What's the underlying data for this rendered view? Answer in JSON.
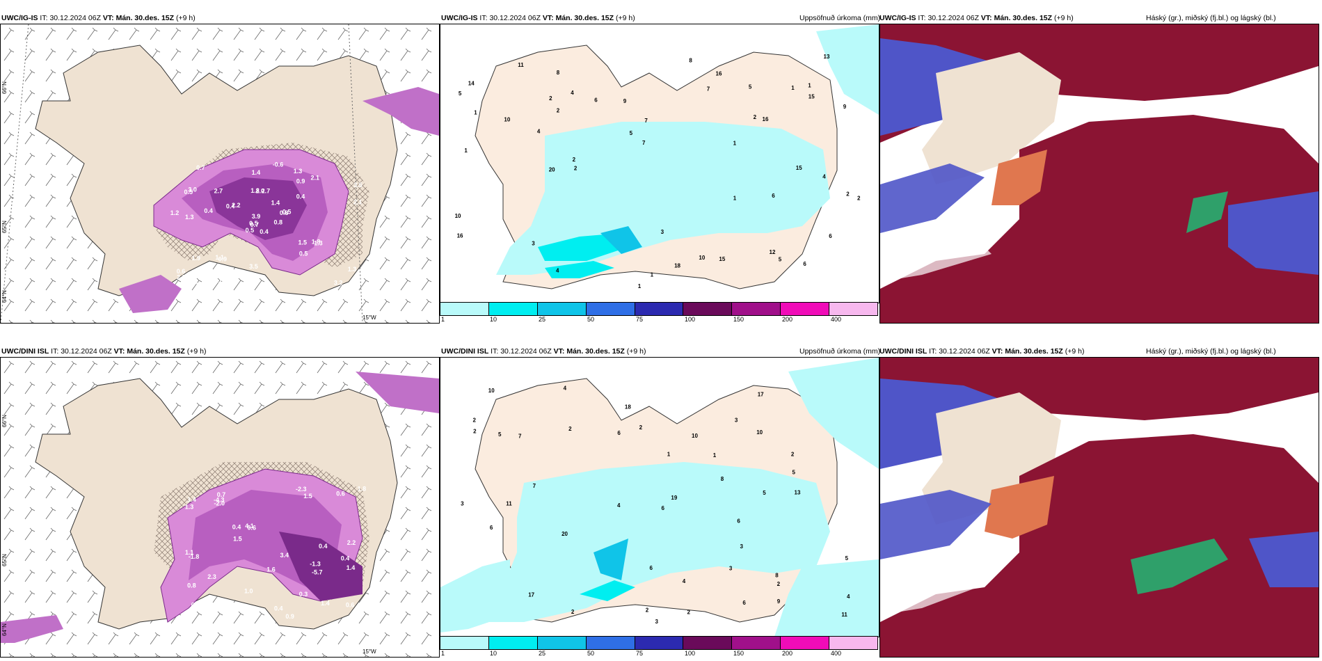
{
  "rows": [
    {
      "model": "UWC/IG-IS",
      "it_label": "IT:",
      "it_value": "30.12.2024 06Z",
      "vt_label": "VT:",
      "vt_value": "Mán. 30.des. 15Z",
      "lead": "(+9 h)"
    },
    {
      "model": "UWC/DINI ISL",
      "it_label": "IT:",
      "it_value": "30.12.2024 06Z",
      "vt_label": "VT:",
      "vt_value": "Mán. 30.des. 15Z",
      "lead": "(+9 h)"
    }
  ],
  "precip_title": "Uppsöfnuð úrkoma (mm)",
  "cloud_title": "Háský (gr.), miðský (fj.bl.) og lágský (bl.)",
  "colorbar": {
    "ticks": [
      "1",
      "10",
      "25",
      "50",
      "75",
      "100",
      "150",
      "200",
      "400"
    ],
    "colors": [
      "#b9fafa",
      "#00eef0",
      "#10c4e8",
      "#2f6fe6",
      "#2c2ab0",
      "#6a0a5a",
      "#a0108a",
      "#f00cb8",
      "#f7b8ee"
    ]
  },
  "temp_panel_top": {
    "lat_labels": [
      "66°N",
      "65°N",
      "64°N"
    ],
    "lon_label": "15°W",
    "values": [
      "0.4",
      "0.5",
      "0.7",
      "0.6",
      "0.8",
      "0.9",
      "1.3",
      "2.7",
      "0.9",
      "0.8",
      "0.7",
      "1.1",
      "1.3",
      "3.5",
      "0.5",
      "0.4",
      "1.0",
      "1.8",
      "1.4",
      "1.9",
      "2.2",
      "2.8",
      "1.4",
      "2.0",
      "0.5",
      "1.3",
      "3.0",
      "1.4",
      "1.2",
      "1.5",
      "2.1",
      "0.5",
      "3.5",
      "3.9",
      "2.7",
      "2.1",
      "1.1",
      "3.2",
      "1.3",
      "1.8",
      "-0.6",
      "0.4",
      "0.4",
      "0.5",
      "0.5"
    ]
  },
  "temp_panel_bottom": {
    "lat_labels": [
      "66°N",
      "65°N",
      "64°N"
    ],
    "lon_label": "15°W",
    "values": [
      "-1.3",
      "0.4",
      "0.2",
      "0.7",
      "0.6",
      "1.4",
      "0.8",
      "1.5",
      "0.4",
      "0.9",
      "1.3",
      "1.1",
      "1.4",
      "0.6",
      "1.0",
      "2.2",
      "1.6",
      "3.4",
      "4.1",
      "2.3",
      "1.8",
      "0.6",
      "1.5",
      "1.4",
      "-2.3",
      "-4.3",
      "-5.7",
      "-1.8",
      "-2.0",
      "0.4",
      "0.4",
      "0.3"
    ]
  },
  "precip_top_values": [
    "1",
    "2",
    "1",
    "1",
    "1",
    "1",
    "1",
    "2",
    "1",
    "2",
    "2",
    "4",
    "2",
    "3",
    "1",
    "4",
    "2",
    "9",
    "6",
    "10",
    "5",
    "4",
    "7",
    "3",
    "5",
    "4",
    "15",
    "16",
    "11",
    "20",
    "10",
    "15",
    "13",
    "10",
    "14",
    "8",
    "6",
    "7",
    "8",
    "16",
    "16",
    "2",
    "5",
    "12",
    "18",
    "9",
    "5",
    "15",
    "6",
    "6",
    "7"
  ],
  "precip_bottom_values": [
    "1",
    "2",
    "2",
    "2",
    "2",
    "2",
    "2",
    "3",
    "7",
    "6",
    "8",
    "10",
    "6",
    "5",
    "4",
    "10",
    "5",
    "3",
    "4",
    "3",
    "2",
    "6",
    "8",
    "4",
    "5",
    "7",
    "10",
    "11",
    "19",
    "18",
    "17",
    "11",
    "17",
    "13",
    "20",
    "6",
    "4",
    "2",
    "6",
    "9",
    "6",
    "3",
    "5",
    "2",
    "1",
    "3"
  ],
  "legend_colors": {
    "land": "#efe2d2",
    "precip_light": "#b9fafa",
    "cloud_high": "#8b1433",
    "cloud_mid": "#4f55c8",
    "cloud_low": "#e0774f"
  }
}
